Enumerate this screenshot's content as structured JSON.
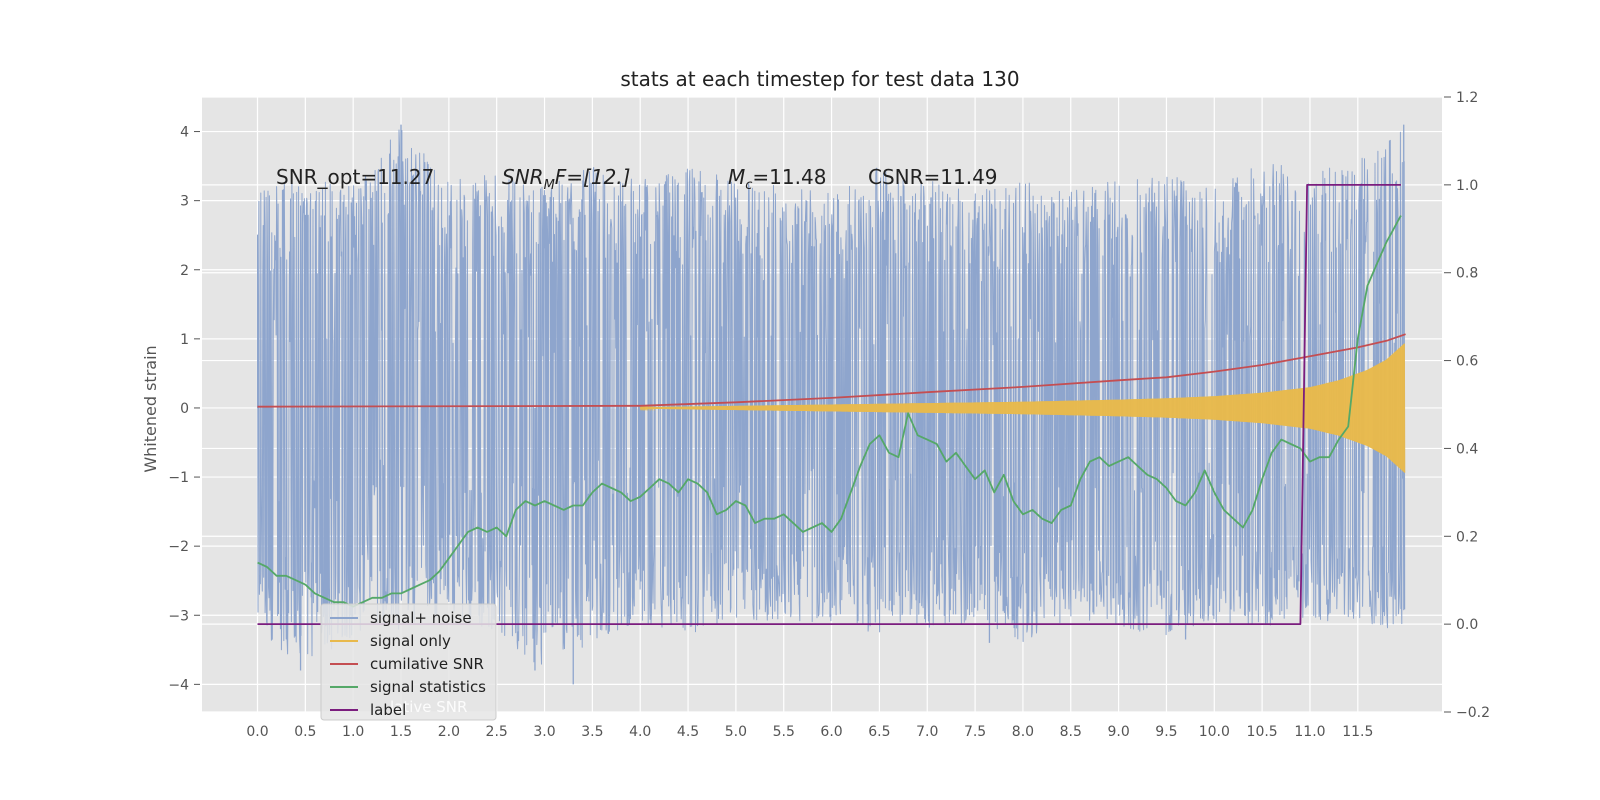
{
  "chart_data": {
    "type": "line",
    "title": "stats at each timestep for test data 130",
    "ylabel": "Whitened strain",
    "xlabel": "",
    "xlim": [
      -0.58,
      12.38
    ],
    "ylim": [
      -4.4,
      4.5
    ],
    "ylim_right": [
      -0.2,
      1.2
    ],
    "x_ticks": [
      "0.0",
      "0.5",
      "1.0",
      "1.5",
      "2.0",
      "2.5",
      "3.0",
      "3.5",
      "4.0",
      "4.5",
      "5.0",
      "5.5",
      "6.0",
      "6.5",
      "7.0",
      "7.5",
      "8.0",
      "8.5",
      "9.0",
      "9.5",
      "10.0",
      "10.5",
      "11.0",
      "11.5"
    ],
    "y_ticks_left": [
      "4",
      "3",
      "2",
      "1",
      "0",
      "−1",
      "−2",
      "−3",
      "−4"
    ],
    "y_ticks_right": [
      "1.2",
      "1.0",
      "0.8",
      "0.6",
      "0.4",
      "0.2",
      "0.0",
      "−0.2"
    ],
    "grid": true,
    "legend_position": "lower-left",
    "annotations": {
      "snr_opt": "SNR_opt=11.27",
      "snr_mf_main": "SNR",
      "snr_mf_sub": "M",
      "snr_mf_rest": "F=[12.]",
      "mc_main": "M",
      "mc_sub": "c",
      "mc_rest": "=11.48",
      "csnr": "CSNR=11.49"
    },
    "series": [
      {
        "name": "signal+ noise",
        "color": "#8ea5cd",
        "axis": "left",
        "envelope_x": [
          0.0,
          0.5,
          1.0,
          1.5,
          2.0,
          2.5,
          3.0,
          3.5,
          4.0,
          4.5,
          5.0,
          5.5,
          6.0,
          6.5,
          7.0,
          7.5,
          8.0,
          8.5,
          9.0,
          9.5,
          10.0,
          10.5,
          11.0,
          11.5,
          12.0
        ],
        "envelope_max": [
          3.2,
          3.3,
          3.3,
          4.1,
          3.3,
          3.4,
          3.2,
          3.5,
          3.3,
          3.5,
          3.3,
          3.2,
          3.1,
          3.5,
          3.3,
          3.2,
          3.3,
          3.2,
          3.3,
          3.4,
          3.2,
          3.6,
          3.4,
          3.6,
          4.1
        ],
        "envelope_min": [
          -3.3,
          -3.8,
          -3.3,
          -3.2,
          -3.0,
          -3.3,
          -3.8,
          -3.4,
          -3.1,
          -3.3,
          -3.1,
          -3.1,
          -3.1,
          -3.3,
          -3.2,
          -3.1,
          -3.4,
          -3.1,
          -3.2,
          -3.3,
          -3.1,
          -3.2,
          -3.1,
          -3.2,
          -3.2
        ],
        "spikes": [
          {
            "x": 1.5,
            "y": 4.1
          },
          {
            "x": 6.0,
            "y": 2.0
          },
          {
            "x": 3.3,
            "y": -4.0
          },
          {
            "x": 2.9,
            "y": -3.8
          },
          {
            "x": 0.45,
            "y": -3.8
          },
          {
            "x": 11.98,
            "y": 4.1
          },
          {
            "x": 7.65,
            "y": -3.4
          },
          {
            "x": 9.7,
            "y": -3.35
          }
        ]
      },
      {
        "name": "signal only",
        "color": "#e8b94c",
        "axis": "left",
        "x": [
          0.0,
          4.0,
          5.0,
          6.0,
          7.0,
          8.0,
          9.0,
          9.5,
          10.0,
          10.5,
          11.0,
          11.3,
          11.6,
          11.8,
          12.0
        ],
        "amplitude": [
          0.0,
          0.01,
          0.03,
          0.05,
          0.07,
          0.09,
          0.12,
          0.14,
          0.17,
          0.22,
          0.3,
          0.4,
          0.55,
          0.7,
          0.95
        ]
      },
      {
        "name": "cumilative SNR",
        "color": "#c44e52",
        "axis": "right",
        "x": [
          0.0,
          4.0,
          5.0,
          6.0,
          7.0,
          8.0,
          9.0,
          9.5,
          10.0,
          10.5,
          11.0,
          11.5,
          11.8,
          12.0
        ],
        "y": [
          0.495,
          0.497,
          0.505,
          0.515,
          0.528,
          0.54,
          0.555,
          0.562,
          0.575,
          0.59,
          0.61,
          0.63,
          0.645,
          0.66
        ]
      },
      {
        "name": "signal statistics",
        "color": "#55a868",
        "axis": "right",
        "x": [
          0.0,
          0.1,
          0.2,
          0.3,
          0.4,
          0.5,
          0.6,
          0.7,
          0.8,
          0.9,
          1.0,
          1.1,
          1.2,
          1.3,
          1.4,
          1.5,
          1.6,
          1.7,
          1.8,
          1.9,
          2.0,
          2.1,
          2.2,
          2.3,
          2.4,
          2.5,
          2.6,
          2.7,
          2.8,
          2.9,
          3.0,
          3.1,
          3.2,
          3.3,
          3.4,
          3.5,
          3.6,
          3.7,
          3.8,
          3.9,
          4.0,
          4.1,
          4.2,
          4.3,
          4.4,
          4.5,
          4.6,
          4.7,
          4.8,
          4.9,
          5.0,
          5.1,
          5.2,
          5.3,
          5.4,
          5.5,
          5.6,
          5.7,
          5.8,
          5.9,
          6.0,
          6.1,
          6.2,
          6.3,
          6.4,
          6.5,
          6.6,
          6.7,
          6.8,
          6.9,
          7.0,
          7.1,
          7.2,
          7.3,
          7.4,
          7.5,
          7.6,
          7.7,
          7.8,
          7.9,
          8.0,
          8.1,
          8.2,
          8.3,
          8.4,
          8.5,
          8.6,
          8.7,
          8.8,
          8.9,
          9.0,
          9.1,
          9.2,
          9.3,
          9.4,
          9.5,
          9.6,
          9.7,
          9.8,
          9.9,
          10.0,
          10.1,
          10.2,
          10.3,
          10.4,
          10.5,
          10.6,
          10.7,
          10.8,
          10.9,
          11.0,
          11.1,
          11.2,
          11.3,
          11.4,
          11.5,
          11.6,
          11.7,
          11.8,
          11.9,
          11.95
        ],
        "y": [
          0.14,
          0.13,
          0.11,
          0.11,
          0.1,
          0.09,
          0.07,
          0.06,
          0.05,
          0.05,
          0.04,
          0.05,
          0.06,
          0.06,
          0.07,
          0.07,
          0.08,
          0.09,
          0.1,
          0.12,
          0.15,
          0.18,
          0.21,
          0.22,
          0.21,
          0.22,
          0.2,
          0.26,
          0.28,
          0.27,
          0.28,
          0.27,
          0.26,
          0.27,
          0.27,
          0.3,
          0.32,
          0.31,
          0.3,
          0.28,
          0.29,
          0.31,
          0.33,
          0.32,
          0.3,
          0.33,
          0.32,
          0.3,
          0.25,
          0.26,
          0.28,
          0.27,
          0.23,
          0.24,
          0.24,
          0.25,
          0.23,
          0.21,
          0.22,
          0.23,
          0.21,
          0.24,
          0.3,
          0.36,
          0.41,
          0.43,
          0.39,
          0.38,
          0.48,
          0.43,
          0.42,
          0.41,
          0.37,
          0.39,
          0.36,
          0.33,
          0.35,
          0.3,
          0.34,
          0.28,
          0.25,
          0.26,
          0.24,
          0.23,
          0.26,
          0.27,
          0.33,
          0.37,
          0.38,
          0.36,
          0.37,
          0.38,
          0.36,
          0.34,
          0.33,
          0.31,
          0.28,
          0.27,
          0.3,
          0.35,
          0.3,
          0.26,
          0.24,
          0.22,
          0.26,
          0.33,
          0.39,
          0.42,
          0.41,
          0.4,
          0.37,
          0.38,
          0.38,
          0.42,
          0.45,
          0.65,
          0.77,
          0.82,
          0.87,
          0.91,
          0.93
        ]
      },
      {
        "name": "label",
        "color": "#7b1d7e",
        "axis": "right",
        "x": [
          0.0,
          10.9,
          10.97,
          11.0,
          11.95
        ],
        "y": [
          0.0,
          0.0,
          1.0,
          1.0,
          1.0
        ]
      }
    ],
    "legend_overlap_text": "lative SNR"
  }
}
